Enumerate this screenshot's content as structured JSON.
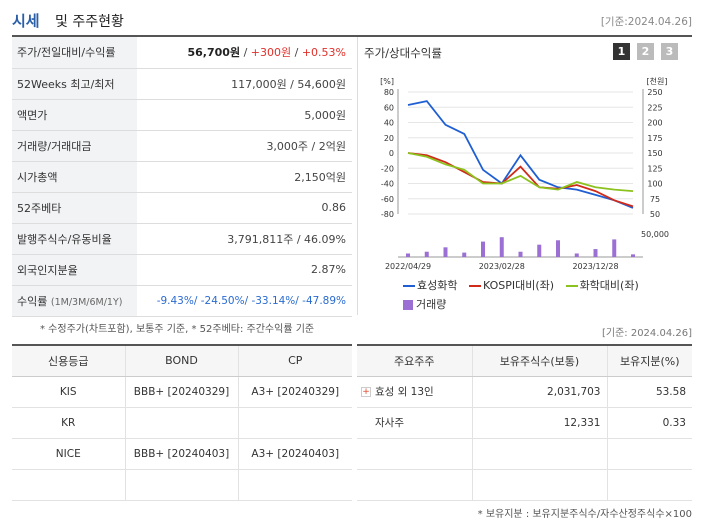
{
  "header": {
    "title_blue": "시세",
    "title_rest": "및 주주현황",
    "date": "[기준:2024.04.26]"
  },
  "info_rows": [
    {
      "label": "주가/전일대비/수익률",
      "v1": "56,700원",
      "sep1": " / ",
      "v2": "+300원",
      "sep2": " / ",
      "v3": "+0.53%"
    },
    {
      "label": "52Weeks 최고/최저",
      "value": "117,000원 / 54,600원"
    },
    {
      "label": "액면가",
      "value": "5,000원"
    },
    {
      "label": "거래량/거래대금",
      "value": "3,000주 / 2억원"
    },
    {
      "label": "시가총액",
      "value": "2,150억원"
    },
    {
      "label": "52주베타",
      "value": "0.86"
    },
    {
      "label": "발행주식수/유동비율",
      "value": "3,791,811주 / 46.09%"
    },
    {
      "label": "외국인지분율",
      "value": "2.87%"
    },
    {
      "label": "수익률",
      "label_sub": "(1M/3M/6M/1Y)",
      "r1": "-9.43%",
      "r2": "-24.50%",
      "r3": "-33.14%",
      "r4": "-47.89%"
    }
  ],
  "note_left": "* 수정주가(차트포함), 보통주 기준, * 52주베타: 주간수익률 기준",
  "note_right": "[기준: 2024.04.26]",
  "chart_panel": {
    "title": "주가/상대수익률",
    "pages": [
      "1",
      "2",
      "3"
    ],
    "unit_left": "[%]",
    "unit_right": "[천원]",
    "vol_max_label": "50,000"
  },
  "chart_data": {
    "type": "line",
    "x": [
      "2022/04/29",
      "2022/06/30",
      "2022/08/31",
      "2022/10/31",
      "2022/12/31",
      "2023/02/28",
      "2023/04/30",
      "2023/06/30",
      "2023/08/31",
      "2023/10/31",
      "2023/12/28",
      "2024/02/29",
      "2024/04/26"
    ],
    "x_tick_labels": [
      "2022/04/29",
      "2023/02/28",
      "2023/12/28"
    ],
    "y_left_ticks": [
      "80",
      "60",
      "40",
      "20",
      "0",
      "-20",
      "-40",
      "-60",
      "-80"
    ],
    "y_right_ticks": [
      "250",
      "225",
      "200",
      "175",
      "150",
      "125",
      "100",
      "75",
      "50"
    ],
    "ylim_left": [
      -80,
      80
    ],
    "series": [
      {
        "name": "효성화학",
        "color": "#1f5fd3",
        "values": [
          63,
          68,
          37,
          25,
          -22,
          -40,
          -3,
          -35,
          -45,
          -48,
          -55,
          -62,
          -72
        ]
      },
      {
        "name": "KOSPI대비(좌)",
        "color": "#d02a1a",
        "values": [
          0,
          -3,
          -12,
          -25,
          -38,
          -40,
          -18,
          -45,
          -47,
          -42,
          -50,
          -62,
          -70
        ]
      },
      {
        "name": "화학대비(좌)",
        "color": "#8cc21e",
        "values": [
          0,
          -5,
          -15,
          -22,
          -40,
          -40,
          -30,
          -45,
          -48,
          -38,
          -45,
          -48,
          -50
        ]
      }
    ],
    "volume_name": "거래량",
    "volume_color": "#9b6fd3",
    "volume": [
      8,
      12,
      22,
      10,
      35,
      45,
      12,
      28,
      38,
      8,
      18,
      40,
      6
    ]
  },
  "credit_table": {
    "headers": [
      "신용등급",
      "BOND",
      "CP"
    ],
    "rows": [
      [
        "KIS",
        "BBB+ [20240329]",
        "A3+ [20240329]"
      ],
      [
        "KR",
        "",
        ""
      ],
      [
        "NICE",
        "BBB+ [20240403]",
        "A3+ [20240403]"
      ],
      [
        "",
        "",
        ""
      ]
    ]
  },
  "holder_table": {
    "headers": [
      "주요주주",
      "보유주식수(보통)",
      "보유지분(%)"
    ],
    "rows": [
      [
        "효성 외 13인",
        "2,031,703",
        "53.58"
      ],
      [
        "자사주",
        "12,331",
        "0.33"
      ],
      [
        "",
        "",
        ""
      ],
      [
        "",
        "",
        ""
      ]
    ]
  },
  "note_bottom": "* 보유지분 : 보유지분주식수/자수산정주식수×100"
}
